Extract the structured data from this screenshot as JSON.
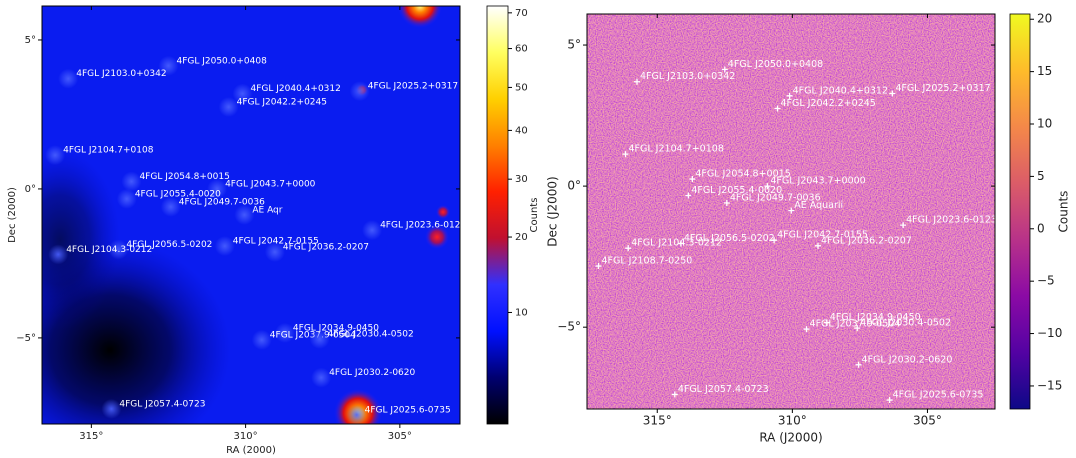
{
  "chart_data": [
    {
      "type": "skymap",
      "xlabel": "RA (2000)",
      "ylabel": "Dec (2000)",
      "xlim": [
        316.6,
        303.05
      ],
      "ylim": [
        -7.89,
        6.14
      ],
      "xticks": [
        {
          "value": 315,
          "label": "315°"
        },
        {
          "value": 310,
          "label": "310°"
        },
        {
          "value": 305,
          "label": "305°"
        }
      ],
      "yticks": [
        {
          "value": 5,
          "label": "5°"
        },
        {
          "value": 0,
          "label": "0°"
        },
        {
          "value": -5,
          "label": "−5°"
        }
      ],
      "markers": false,
      "colorbar": {
        "label": "Counts",
        "scale": "sqrt",
        "clim": [
          1.5,
          72
        ],
        "ticks": [
          10,
          20,
          30,
          40,
          50,
          60,
          70
        ],
        "colormap": [
          "#000000",
          "#000070",
          "#0010ff",
          "#3030ff",
          "#c01030",
          "#ff2000",
          "#ff8000",
          "#ffd000",
          "#ffff60",
          "#ffffff"
        ]
      },
      "sources": [
        {
          "label": "4FGL J2050.0+0408",
          "ra": 312.5,
          "dec": 4.133
        },
        {
          "label": "4FGL J2103.0+0342",
          "ra": 315.75,
          "dec": 3.7
        },
        {
          "label": "4FGL J2040.4+0312",
          "ra": 310.1,
          "dec": 3.2
        },
        {
          "label": "4FGL J2025.2+0317",
          "ra": 306.3,
          "dec": 3.283
        },
        {
          "label": "4FGL J2042.2+0245",
          "ra": 310.55,
          "dec": 2.75
        },
        {
          "label": "4FGL J2104.7+0108",
          "ra": 316.175,
          "dec": 1.133
        },
        {
          "label": "4FGL J2054.8+0015",
          "ra": 313.7,
          "dec": 0.25
        },
        {
          "label": "4FGL J2043.7+0000",
          "ra": 310.925,
          "dec": 0
        },
        {
          "label": "4FGL J2055.4-0020",
          "ra": 313.85,
          "dec": -0.333
        },
        {
          "label": "4FGL J2049.7-0036",
          "ra": 312.425,
          "dec": -0.6
        },
        {
          "label": "AE Aqr",
          "ra": 310.04,
          "dec": -0.87
        },
        {
          "label": "4FGL J2023.6-0123",
          "ra": 305.9,
          "dec": -1.383
        },
        {
          "label": "4FGL J2056.5-0202",
          "ra": 314.125,
          "dec": -2.033
        },
        {
          "label": "4FGL J2042.7-0155",
          "ra": 310.675,
          "dec": -1.917
        },
        {
          "label": "4FGL J2036.2-0207",
          "ra": 309.05,
          "dec": -2.117
        },
        {
          "label": "4FGL J2104.3-0212",
          "ra": 316.075,
          "dec": -2.2
        },
        {
          "label": "4FGL J2034.9-0450",
          "ra": 308.725,
          "dec": -4.833
        },
        {
          "label": "4FGL J2037.9-0504",
          "ra": 309.475,
          "dec": -5.067
        },
        {
          "label": "4FGL J2030.4-0502",
          "ra": 307.6,
          "dec": -5.033
        },
        {
          "label": "4FGL J2030.2-0620",
          "ra": 307.55,
          "dec": -6.333
        },
        {
          "label": "4FGL J2057.4-0723",
          "ra": 314.35,
          "dec": -7.383
        },
        {
          "label": "4FGL J2025.6-0735",
          "ra": 306.4,
          "dec": -7.583
        }
      ]
    },
    {
      "type": "skymap",
      "xlabel": "RA (J2000)",
      "ylabel": "Dec (J2000)",
      "xlim": [
        317.6,
        302.5
      ],
      "ylim": [
        -7.9,
        6.1
      ],
      "xticks": [
        {
          "value": 315,
          "label": "315°"
        },
        {
          "value": 310,
          "label": "310°"
        },
        {
          "value": 305,
          "label": "305°"
        }
      ],
      "yticks": [
        {
          "value": 5,
          "label": "5°"
        },
        {
          "value": 0,
          "label": "0°"
        },
        {
          "value": -5,
          "label": "−5°"
        }
      ],
      "markers": true,
      "colorbar": {
        "label": "Counts",
        "scale": "linear",
        "clim": [
          -17.2,
          20.5
        ],
        "ticks": [
          20,
          15,
          10,
          5,
          0,
          {
            "value": -5,
            "label": "−5"
          },
          {
            "value": -10,
            "label": "−10"
          },
          {
            "value": -15,
            "label": "−15"
          }
        ],
        "colormap": [
          "#0d0887",
          "#5302a3",
          "#8b0aa5",
          "#b83289",
          "#db5c68",
          "#f48849",
          "#febc2a",
          "#f0f921"
        ]
      },
      "sources": [
        {
          "label": "4FGL J2050.0+0408",
          "ra": 312.5,
          "dec": 4.133
        },
        {
          "label": "4FGL J2103.0+0342",
          "ra": 315.75,
          "dec": 3.7
        },
        {
          "label": "4FGL J2040.4+0312",
          "ra": 310.1,
          "dec": 3.2
        },
        {
          "label": "4FGL J2025.2+0317",
          "ra": 306.3,
          "dec": 3.283
        },
        {
          "label": "4FGL J2042.2+0245",
          "ra": 310.55,
          "dec": 2.75
        },
        {
          "label": "4FGL J2104.7+0108",
          "ra": 316.175,
          "dec": 1.133
        },
        {
          "label": "4FGL J2054.8+0015",
          "ra": 313.7,
          "dec": 0.25
        },
        {
          "label": "4FGL J2043.7+0000",
          "ra": 310.925,
          "dec": 0
        },
        {
          "label": "4FGL J2055.4-0020",
          "ra": 313.85,
          "dec": -0.333
        },
        {
          "label": "4FGL J2049.7-0036",
          "ra": 312.425,
          "dec": -0.6
        },
        {
          "label": "AE Aquarii",
          "ra": 310.04,
          "dec": -0.87
        },
        {
          "label": "4FGL J2023.6-0123",
          "ra": 305.9,
          "dec": -1.383
        },
        {
          "label": "4FGL J2056.5-0202",
          "ra": 314.125,
          "dec": -2.033
        },
        {
          "label": "4FGL J2042.7-0155",
          "ra": 310.675,
          "dec": -1.917
        },
        {
          "label": "4FGL J2036.2-0207",
          "ra": 309.05,
          "dec": -2.117
        },
        {
          "label": "4FGL J2104.3-0212",
          "ra": 316.075,
          "dec": -2.2
        },
        {
          "label": "4FGL J2108.7-0250",
          "ra": 317.175,
          "dec": -2.833
        },
        {
          "label": "4FGL J2034.9-0450",
          "ra": 308.725,
          "dec": -4.833
        },
        {
          "label": "4FGL J2037.9-0504",
          "ra": 309.475,
          "dec": -5.067
        },
        {
          "label": "4FGL J2030.4-0502",
          "ra": 307.6,
          "dec": -5.033
        },
        {
          "label": "4FGL J2030.2-0620",
          "ra": 307.55,
          "dec": -6.333
        },
        {
          "label": "4FGL J2057.4-0723",
          "ra": 314.35,
          "dec": -7.383
        },
        {
          "label": "4FGL J2025.6-0735",
          "ra": 306.4,
          "dec": -7.583
        }
      ]
    }
  ]
}
